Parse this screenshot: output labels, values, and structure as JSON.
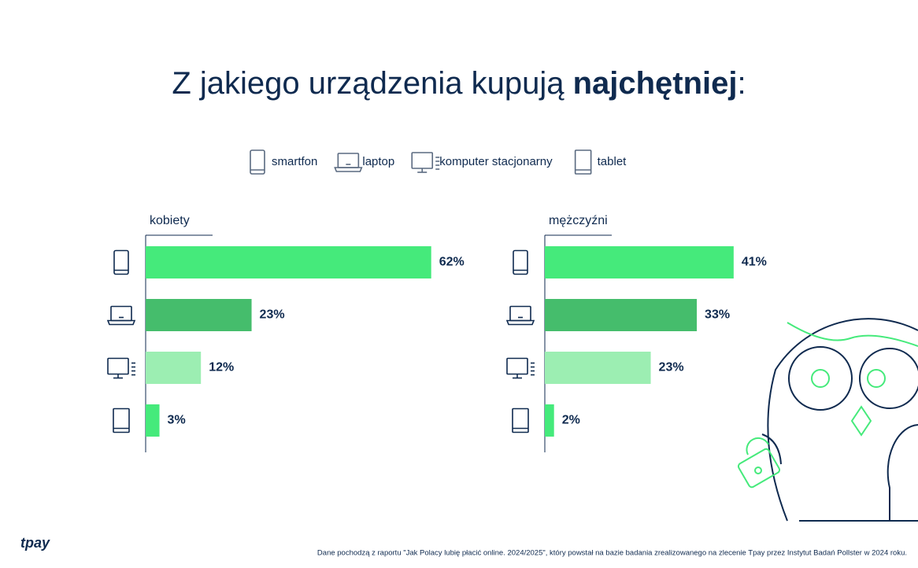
{
  "title": {
    "regular": "Z jakiego urządzenia kupują ",
    "bold": "najchętniej",
    "end": ":"
  },
  "chart_data": [
    {
      "type": "bar",
      "orientation": "horizontal",
      "title": "kobiety",
      "categories": [
        "smartfon",
        "laptop",
        "komputer stacjonarny",
        "tablet"
      ],
      "values": [
        62,
        23,
        12,
        3
      ],
      "value_labels": [
        "62%",
        "23%",
        "12%",
        "3%"
      ],
      "colors": [
        "#45ea7b",
        "#45bd6c",
        "#9ceeb2",
        "#45ea7b"
      ]
    },
    {
      "type": "bar",
      "orientation": "horizontal",
      "title": "mężczyźni",
      "values": [
        41,
        33,
        23,
        2
      ],
      "value_labels": [
        "41%",
        "33%",
        "23%",
        "2%"
      ],
      "colors": [
        "#45ea7b",
        "#45bd6c",
        "#9ceeb2",
        "#45ea7b"
      ]
    }
  ],
  "footer": {
    "logo": "tpay",
    "source": "Dane pochodzą z raportu \"Jak Polacy lubię płacić online. 2024/2025\",  który powstał na bazie badania zrealizowanego na zlecenie Tpay przez Instytut Badań Pollster w 2024 roku."
  }
}
